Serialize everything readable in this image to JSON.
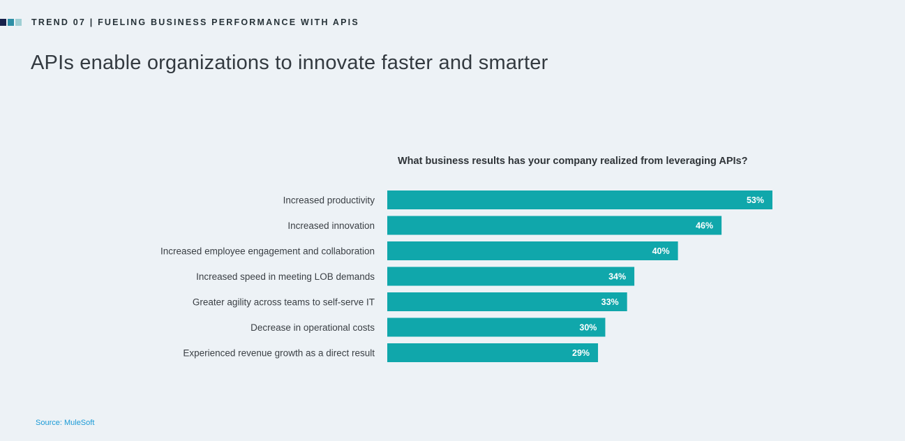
{
  "header": {
    "label": "TREND 07 | FUELING BUSINESS PERFORMANCE WITH APIS",
    "squares": [
      {
        "name": "square-1",
        "color": "#17214a"
      },
      {
        "name": "square-2",
        "color": "#2e8fa6"
      },
      {
        "name": "square-3",
        "color": "#9fcfd4"
      }
    ]
  },
  "page_title": "APIs enable organizations to innovate faster and smarter",
  "colors": {
    "bar": "#10a7ab",
    "bar_label": "#ffffff",
    "category_label": "#3a3f44",
    "source": "#1a9ad6"
  },
  "chart_data": {
    "type": "bar",
    "orientation": "horizontal",
    "title": "What business results has your company realized from leveraging APIs?",
    "categories": [
      "Increased productivity",
      "Increased innovation",
      "Increased employee engagement and collaboration",
      "Increased speed in meeting LOB demands",
      "Greater agility across teams to self-serve IT",
      "Decrease in operational costs",
      "Experienced revenue growth as a direct result"
    ],
    "values": [
      53,
      46,
      40,
      34,
      33,
      30,
      29
    ],
    "value_labels": [
      "53%",
      "46%",
      "40%",
      "34%",
      "33%",
      "30%",
      "29%"
    ],
    "unit": "%",
    "xlim": [
      0,
      53
    ],
    "grid": false,
    "legend": "none"
  },
  "source": "Source: MuleSoft"
}
